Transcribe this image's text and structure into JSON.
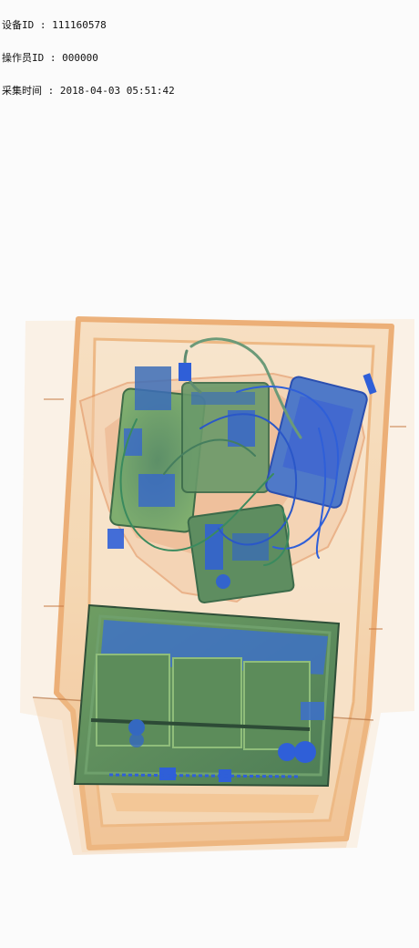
{
  "metadata": {
    "device_id": "设备ID : 111160578",
    "operator_id": "操作员ID : 000000",
    "capture_time": "采集时间 : 2018-04-03 05:51:42"
  },
  "image": {
    "subject": "xray-scan-of-tray-with-tablet-and-electronics",
    "colors": {
      "background": "#fbfbfb",
      "tray_organic": "#f0a860",
      "tray_light": "#f6dcc0",
      "inorganic_green": "#5f9a5e",
      "metal_blue": "#2f5fd8",
      "tablet_body": "#4f7d55"
    }
  }
}
